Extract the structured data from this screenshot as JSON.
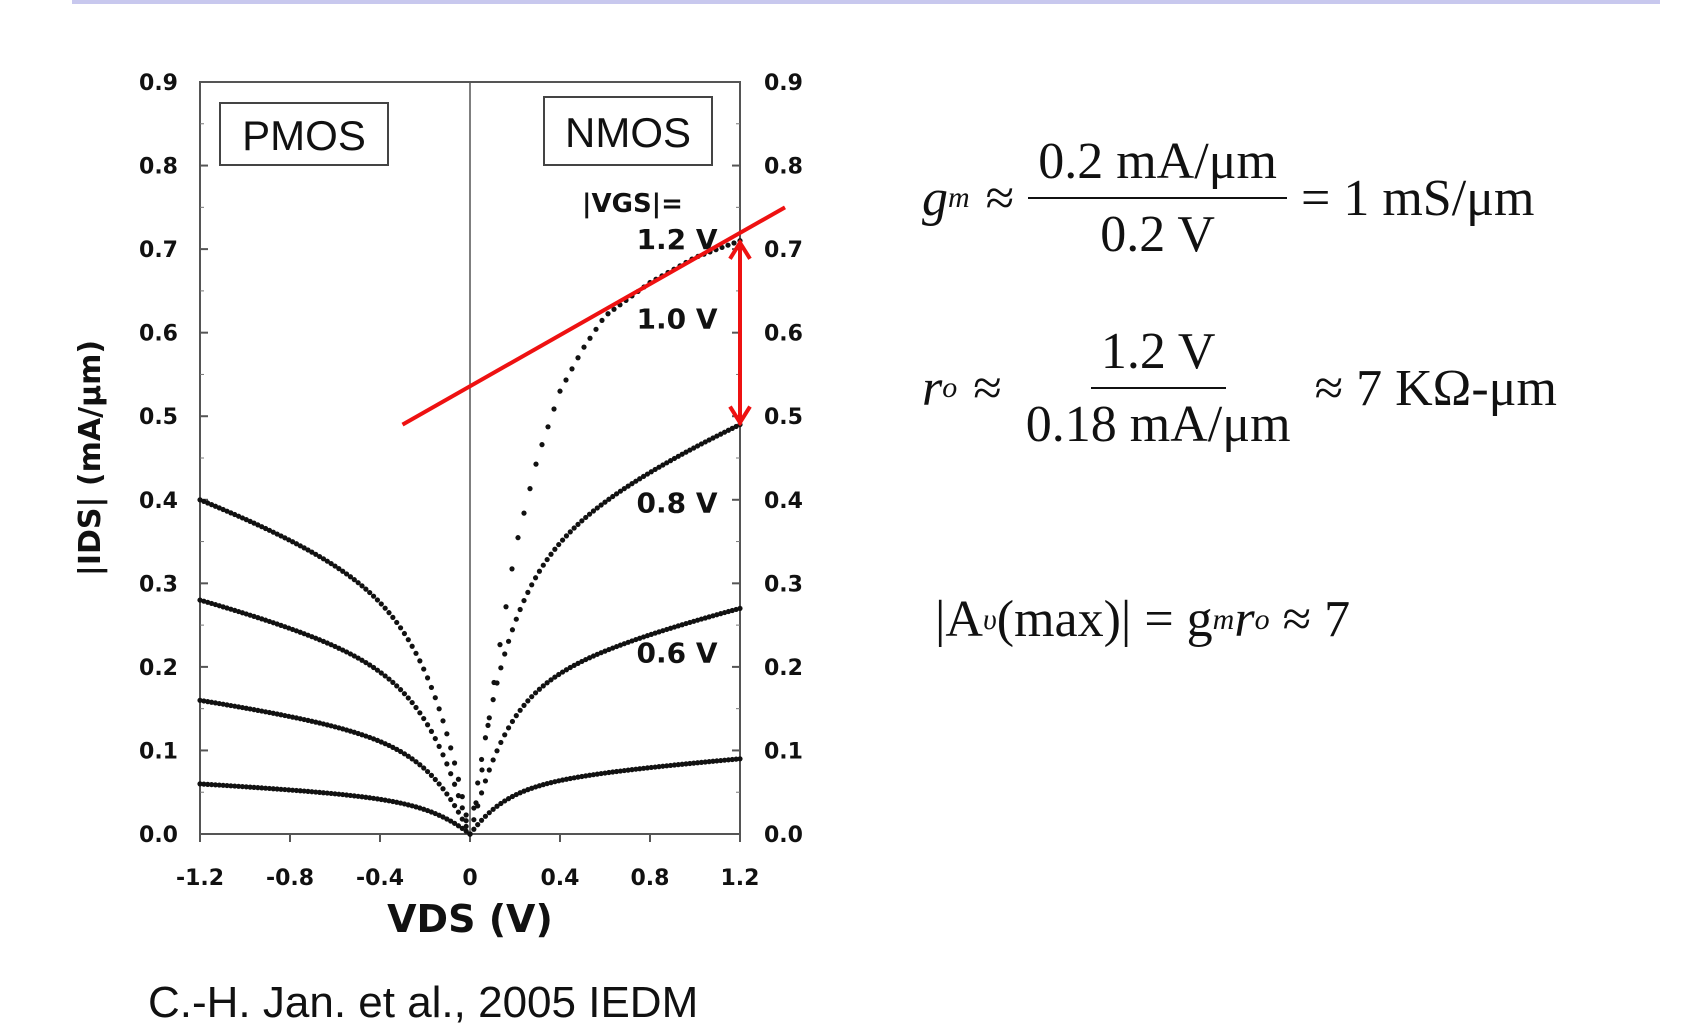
{
  "chart_data": {
    "type": "scatter",
    "title": "",
    "xlabel": "VDS (V)",
    "ylabel": "|IDS| (mA/μm)",
    "xlim": [
      -1.2,
      1.2
    ],
    "ylim": [
      0.0,
      0.9
    ],
    "x_ticks": [
      "-1.2",
      "-0.8",
      "-0.4",
      "0",
      "0.4",
      "0.8",
      "1.2"
    ],
    "y_ticks": [
      "0.0",
      "0.1",
      "0.2",
      "0.3",
      "0.4",
      "0.5",
      "0.6",
      "0.7",
      "0.8",
      "0.9"
    ],
    "panel_labels": {
      "left": "PMOS",
      "right": "NMOS"
    },
    "vgs_header": "|VGS|=",
    "series": [
      {
        "name": "1.2 V",
        "label": "1.2 V",
        "pmos_end": 0.4,
        "nmos_end": 0.71,
        "nmos_curve": [
          [
            0,
            0
          ],
          [
            0.05,
            0.07
          ],
          [
            0.1,
            0.17
          ],
          [
            0.2,
            0.34
          ],
          [
            0.3,
            0.45
          ],
          [
            0.4,
            0.53
          ],
          [
            0.5,
            0.58
          ],
          [
            0.6,
            0.62
          ],
          [
            0.7,
            0.64
          ],
          [
            0.8,
            0.66
          ],
          [
            0.9,
            0.675
          ],
          [
            1.0,
            0.69
          ],
          [
            1.1,
            0.7
          ],
          [
            1.2,
            0.71
          ]
        ]
      },
      {
        "name": "1.0 V",
        "label": "1.0 V",
        "pmos_end": 0.28,
        "nmos_end": 0.49
      },
      {
        "name": "0.8 V",
        "label": "0.8 V",
        "pmos_end": 0.16,
        "nmos_end": 0.27
      },
      {
        "name": "0.6 V",
        "label": "0.6 V",
        "pmos_end": 0.06,
        "nmos_end": 0.09
      }
    ],
    "annotations": {
      "tangent_line": {
        "color": "#ee1111",
        "x_start": -0.3,
        "y_start": 0.49,
        "x_end": 1.4,
        "y_end": 0.75
      },
      "delta_arrow": {
        "color": "#ee1111",
        "x": 1.2,
        "y_from": 0.71,
        "y_to": 0.49
      }
    }
  },
  "equations": {
    "gm": {
      "lhs": "g",
      "lhs_sub": "m",
      "approx": "≈",
      "num": "0.2 mA/μm",
      "den": "0.2 V",
      "rhs": "= 1 mS/μm"
    },
    "ro": {
      "lhs": "r",
      "lhs_sub": "o",
      "approx": "≈",
      "num": "1.2 V",
      "den": "0.18 mA/μm",
      "rhs": "≈ 7 KΩ-μm"
    },
    "av": {
      "text_left": "|A",
      "sub": "υ",
      "paren": "(max)|",
      "eq": " = g",
      "sub2": "m",
      "r": "r",
      "sub3": "o",
      "rhs": " ≈ 7"
    }
  },
  "citation": "C.-H. Jan. et al., 2005 IEDM"
}
